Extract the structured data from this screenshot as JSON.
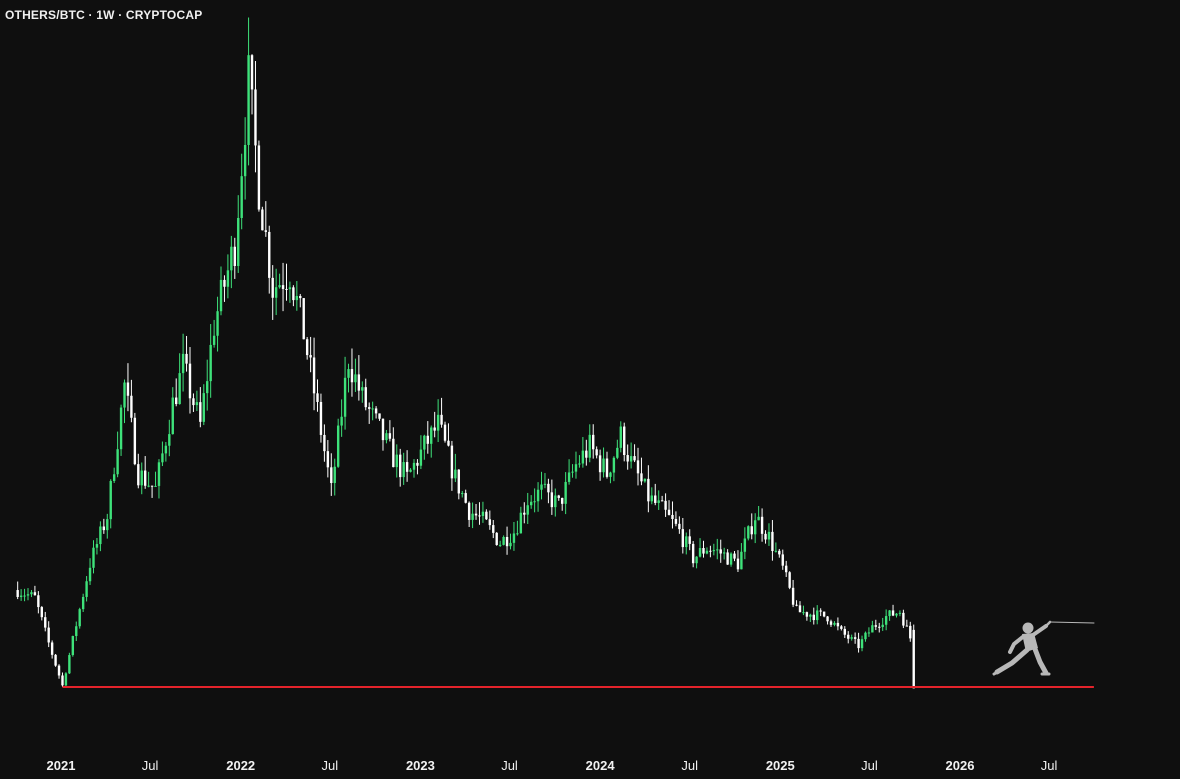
{
  "chart_data": {
    "type": "candlestick",
    "title": "OTHERS/BTC · 1W · CRYPTOCAP",
    "x_axis": {
      "ticks": [
        {
          "label": "2021",
          "year": true
        },
        {
          "label": "Jul",
          "year": false
        },
        {
          "label": "2022",
          "year": true
        },
        {
          "label": "Jul",
          "year": false
        },
        {
          "label": "2023",
          "year": true
        },
        {
          "label": "Jul",
          "year": false
        },
        {
          "label": "2024",
          "year": true
        },
        {
          "label": "Jul",
          "year": false
        },
        {
          "label": "2025",
          "year": true
        },
        {
          "label": "Jul",
          "year": false
        },
        {
          "label": "2026",
          "year": true
        },
        {
          "label": "Jul",
          "year": false
        }
      ],
      "range": [
        "2020-10",
        "2026-11"
      ]
    },
    "price_path": [
      [
        "2020-10-05",
        0.58
      ],
      [
        "2020-11-09",
        0.55
      ],
      [
        "2020-12-07",
        0.38
      ],
      [
        "2021-01-04",
        0.22
      ],
      [
        "2021-02-01",
        0.45
      ],
      [
        "2021-03-01",
        0.68
      ],
      [
        "2021-04-05",
        0.86
      ],
      [
        "2021-05-10",
        1.35
      ],
      [
        "2021-06-07",
        1.02
      ],
      [
        "2021-07-12",
        0.96
      ],
      [
        "2021-08-16",
        1.28
      ],
      [
        "2021-09-06",
        1.42
      ],
      [
        "2021-10-11",
        1.2
      ],
      [
        "2021-11-08",
        1.58
      ],
      [
        "2021-12-20",
        1.88
      ],
      [
        "2022-01-17",
        2.5
      ],
      [
        "2022-02-07",
        2.1
      ],
      [
        "2022-03-07",
        1.72
      ],
      [
        "2022-04-11",
        1.78
      ],
      [
        "2022-05-09",
        1.55
      ],
      [
        "2022-06-13",
        1.18
      ],
      [
        "2022-07-04",
        0.95
      ],
      [
        "2022-08-08",
        1.45
      ],
      [
        "2022-09-05",
        1.3
      ],
      [
        "2022-10-10",
        1.18
      ],
      [
        "2022-11-07",
        1.08
      ],
      [
        "2022-12-05",
        1.0
      ],
      [
        "2023-01-09",
        1.12
      ],
      [
        "2023-02-06",
        1.2
      ],
      [
        "2023-03-13",
        1.0
      ],
      [
        "2023-04-10",
        0.88
      ],
      [
        "2023-05-08",
        0.84
      ],
      [
        "2023-06-12",
        0.76
      ],
      [
        "2023-07-10",
        0.8
      ],
      [
        "2023-08-07",
        0.92
      ],
      [
        "2023-09-04",
        0.95
      ],
      [
        "2023-10-09",
        0.9
      ],
      [
        "2023-11-13",
        1.05
      ],
      [
        "2023-12-11",
        1.12
      ],
      [
        "2024-01-15",
        1.02
      ],
      [
        "2024-02-12",
        1.16
      ],
      [
        "2024-03-04",
        1.06
      ],
      [
        "2024-04-08",
        0.93
      ],
      [
        "2024-05-06",
        0.88
      ],
      [
        "2024-06-10",
        0.8
      ],
      [
        "2024-07-08",
        0.7
      ],
      [
        "2024-08-05",
        0.74
      ],
      [
        "2024-09-02",
        0.72
      ],
      [
        "2024-10-07",
        0.68
      ],
      [
        "2024-11-11",
        0.86
      ],
      [
        "2024-12-09",
        0.78
      ],
      [
        "2025-01-06",
        0.66
      ],
      [
        "2025-02-03",
        0.5
      ],
      [
        "2025-03-03",
        0.49
      ],
      [
        "2025-04-07",
        0.48
      ],
      [
        "2025-05-05",
        0.42
      ],
      [
        "2025-06-09",
        0.37
      ],
      [
        "2025-07-07",
        0.44
      ],
      [
        "2025-08-04",
        0.48
      ],
      [
        "2025-09-01",
        0.5
      ],
      [
        "2025-09-22",
        0.4
      ]
    ],
    "final_candle": {
      "date": "2025-09-29",
      "open": 0.43,
      "high": 0.45,
      "low": 0.21,
      "close": 0.21
    },
    "support_line": {
      "value": 0.215,
      "from": "2021-01-04",
      "to": "2026-09-30",
      "color": "#e4232b"
    },
    "colors": {
      "background": "#0f0f0f",
      "up": "#3ee27a",
      "down": "#ffffff",
      "text": "#f0f0f0"
    },
    "grid": false,
    "legend": "none",
    "icon": "fencer-icon"
  }
}
